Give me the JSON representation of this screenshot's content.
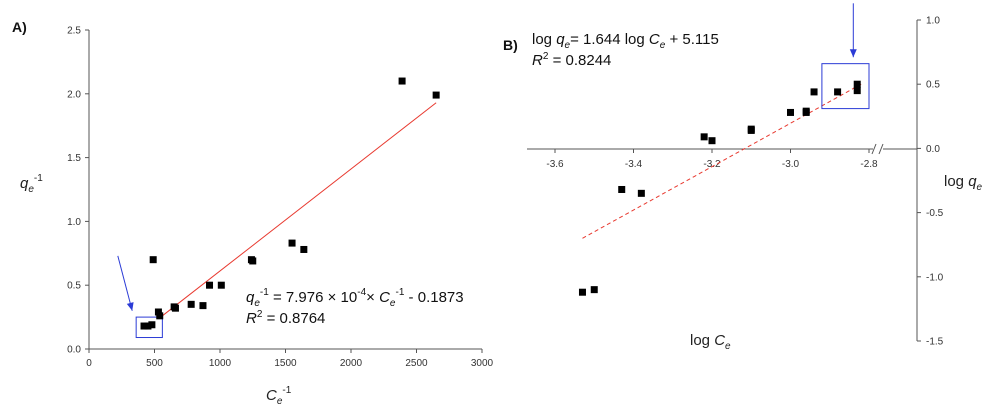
{
  "chart_data": [
    {
      "panel": "A)",
      "type": "scatter",
      "xlim": [
        0,
        3000
      ],
      "ylim": [
        0,
        2.5
      ],
      "xticks": [
        "0",
        "500",
        "1000",
        "1500",
        "2000",
        "2500",
        "3000"
      ],
      "yticks": [
        "0.0",
        "0.5",
        "1.0",
        "1.5",
        "2.0",
        "2.5"
      ],
      "xlabel": {
        "base": "C",
        "sub": "e",
        "sup": "-1"
      },
      "ylabel": {
        "base": "q",
        "sub": "e",
        "sup": "-1"
      },
      "points": [
        {
          "x": 420,
          "y": 0.18
        },
        {
          "x": 450,
          "y": 0.18
        },
        {
          "x": 480,
          "y": 0.19
        },
        {
          "x": 490,
          "y": 0.7
        },
        {
          "x": 530,
          "y": 0.29
        },
        {
          "x": 540,
          "y": 0.26
        },
        {
          "x": 650,
          "y": 0.33
        },
        {
          "x": 660,
          "y": 0.32
        },
        {
          "x": 780,
          "y": 0.35
        },
        {
          "x": 870,
          "y": 0.34
        },
        {
          "x": 920,
          "y": 0.5
        },
        {
          "x": 1010,
          "y": 0.5
        },
        {
          "x": 1240,
          "y": 0.7
        },
        {
          "x": 1250,
          "y": 0.69
        },
        {
          "x": 1550,
          "y": 0.83
        },
        {
          "x": 1640,
          "y": 0.78
        },
        {
          "x": 2390,
          "y": 2.1
        },
        {
          "x": 2650,
          "y": 1.99
        }
      ],
      "fit_line": {
        "x": [
          560,
          2650
        ],
        "y": [
          0.26,
          1.93
        ],
        "style": "solid",
        "color": "#e8392f"
      },
      "highlight_box": {
        "x": [
          360,
          560
        ],
        "y": [
          0.09,
          0.25
        ],
        "color": "#2b3bd6"
      },
      "arrow": {
        "from": {
          "x": 220,
          "y": 0.73
        },
        "to": {
          "x": 330,
          "y": 0.3
        },
        "color": "#2b3bd6"
      },
      "equation": {
        "line1": {
          "q": "q",
          "e": "e",
          "sup": "-1",
          "mid": " = 7.976 × 10",
          "sup2": "-4",
          "mid2": "× ",
          "c": "C",
          "ce": "e",
          "csup": "-1",
          "tail": " - 0.1873"
        },
        "line2": {
          "r": "R",
          "sup": "2",
          "tail": " = 0.8764"
        }
      }
    },
    {
      "panel": "B)",
      "type": "scatter",
      "xlim": [
        -3.72,
        -2.74
      ],
      "ylim": [
        -1.5,
        1.0
      ],
      "x_axis_at_y": 0.0,
      "axis_break": true,
      "xticks": [
        "-3.6",
        "-3.4",
        "-3.2",
        "-3.0",
        "-2.8"
      ],
      "xtick_values": [
        -3.6,
        -3.4,
        -3.2,
        -3.0,
        -2.8
      ],
      "yticks": [
        "1.0",
        "0.5",
        "0.0",
        "-0.5",
        "-1.0",
        "-1.5"
      ],
      "ytick_values": [
        1.0,
        0.5,
        0.0,
        -0.5,
        -1.0,
        -1.5
      ],
      "xlabel": {
        "pre": "log ",
        "base": "C",
        "sub": "e"
      },
      "ylabel": {
        "pre": "log ",
        "base": "q",
        "sub": "e"
      },
      "points": [
        {
          "x": -3.53,
          "y": -1.12
        },
        {
          "x": -3.5,
          "y": -1.1
        },
        {
          "x": -3.43,
          "y": -0.32
        },
        {
          "x": -3.38,
          "y": -0.35
        },
        {
          "x": -3.22,
          "y": 0.09
        },
        {
          "x": -3.2,
          "y": 0.06
        },
        {
          "x": -3.1,
          "y": 0.14
        },
        {
          "x": -3.1,
          "y": 0.15
        },
        {
          "x": -3.0,
          "y": 0.28
        },
        {
          "x": -2.96,
          "y": 0.28
        },
        {
          "x": -2.96,
          "y": 0.29
        },
        {
          "x": -2.94,
          "y": 0.44
        },
        {
          "x": -2.88,
          "y": 0.44
        },
        {
          "x": -2.83,
          "y": 0.45
        },
        {
          "x": -2.83,
          "y": 0.5
        }
      ],
      "fit_line": {
        "x": [
          -3.53,
          -2.82
        ],
        "y": [
          -0.7,
          0.5
        ],
        "style": "dashed",
        "color": "#e8392f"
      },
      "highlight_box": {
        "x": [
          -2.92,
          -2.8
        ],
        "y": [
          0.31,
          0.66
        ],
        "color": "#2b3bd6"
      },
      "arrow": {
        "from": {
          "x": -2.84,
          "y": 1.13
        },
        "to": {
          "x": -2.84,
          "y": 0.71
        },
        "color": "#2b3bd6"
      },
      "equation": {
        "line1": {
          "pre": "log ",
          "q": "q",
          "e": "e",
          "mid": "= 1.644 log ",
          "c": "C",
          "ce": "e",
          "tail": " + 5.115"
        },
        "line2": {
          "r": "R",
          "sup": "2",
          "tail": " = 0.8244"
        }
      }
    }
  ]
}
